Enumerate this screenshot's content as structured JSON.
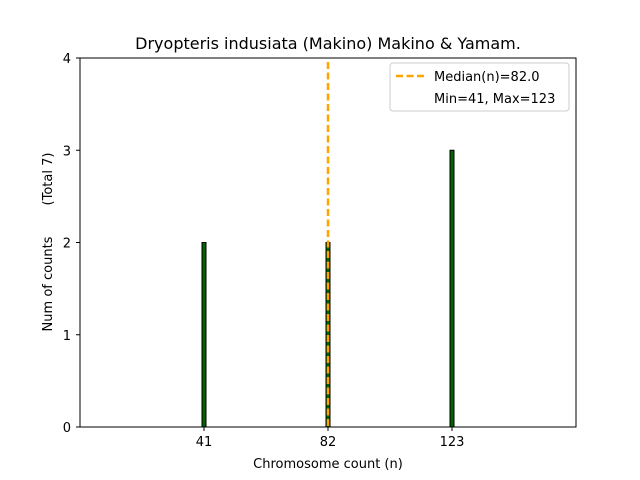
{
  "chart_data": {
    "type": "bar",
    "title": "Dryopteris indusiata (Makino) Makino & Yamam.",
    "xlabel": "Chromosome count (n)",
    "ylabel": "Num of counts",
    "ylabel_note": "(Total 7)",
    "x": [
      41,
      82,
      123
    ],
    "values": [
      2,
      2,
      3
    ],
    "xticks": [
      41,
      82,
      123
    ],
    "yticks": [
      0,
      1,
      2,
      3,
      4
    ],
    "xlim": [
      0,
      164
    ],
    "ylim": [
      0,
      4
    ],
    "bar_color": "#006400",
    "bar_edge_color": "#000000",
    "median": 82.0,
    "median_color": "#FFA500",
    "legend": {
      "position": "top-right",
      "entries": [
        "Median(n)=82.0",
        "Min=41, Max=123"
      ]
    },
    "grid": false
  }
}
